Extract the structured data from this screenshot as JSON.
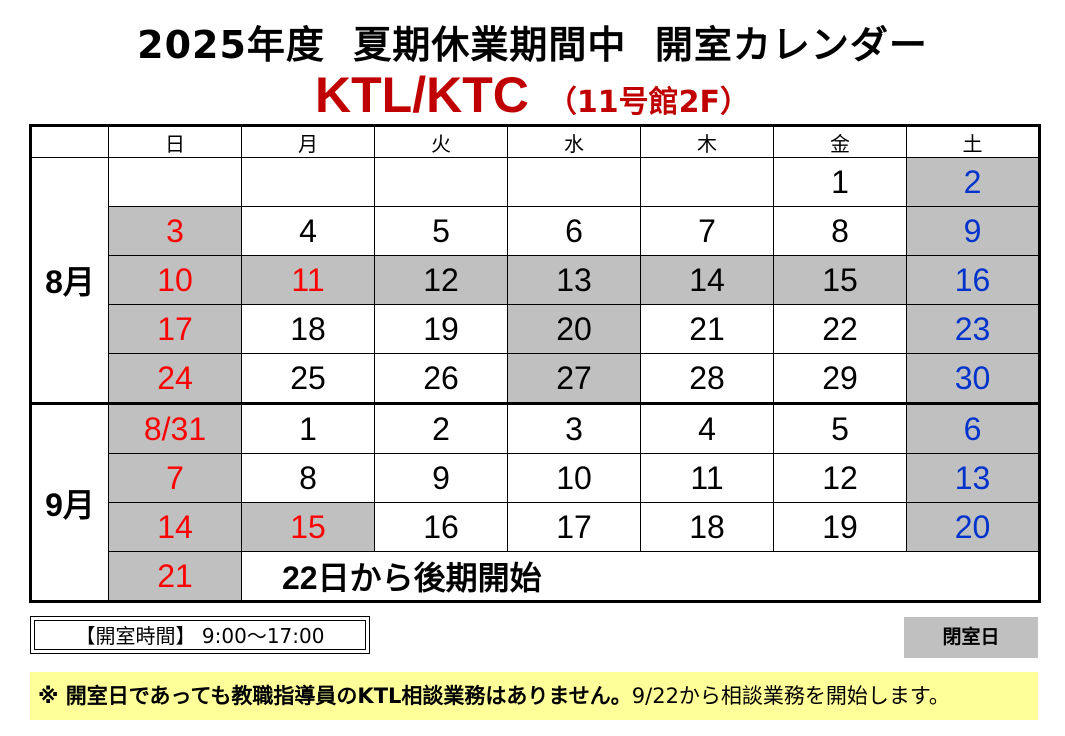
{
  "title": "2025年度  夏期休業期間中  開室カレンダー",
  "subtitle": {
    "main": "KTL/KTC",
    "sub": "（11号館2F）"
  },
  "calendar": {
    "weekdays": [
      "日",
      "月",
      "火",
      "水",
      "木",
      "金",
      "土"
    ],
    "months": [
      {
        "label": "8月",
        "weeks": [
          [
            {
              "d": ""
            },
            {
              "d": ""
            },
            {
              "d": ""
            },
            {
              "d": ""
            },
            {
              "d": ""
            },
            {
              "d": "1"
            },
            {
              "d": "2",
              "closed": true
            }
          ],
          [
            {
              "d": "3",
              "closed": true
            },
            {
              "d": "4"
            },
            {
              "d": "5"
            },
            {
              "d": "6"
            },
            {
              "d": "7"
            },
            {
              "d": "8"
            },
            {
              "d": "9",
              "closed": true
            }
          ],
          [
            {
              "d": "10",
              "closed": true
            },
            {
              "d": "11",
              "closed": true,
              "holiday": true
            },
            {
              "d": "12",
              "closed": true
            },
            {
              "d": "13",
              "closed": true
            },
            {
              "d": "14",
              "closed": true
            },
            {
              "d": "15",
              "closed": true
            },
            {
              "d": "16",
              "closed": true
            }
          ],
          [
            {
              "d": "17",
              "closed": true
            },
            {
              "d": "18"
            },
            {
              "d": "19"
            },
            {
              "d": "20",
              "closed": true
            },
            {
              "d": "21"
            },
            {
              "d": "22"
            },
            {
              "d": "23",
              "closed": true
            }
          ],
          [
            {
              "d": "24",
              "closed": true
            },
            {
              "d": "25"
            },
            {
              "d": "26"
            },
            {
              "d": "27",
              "closed": true
            },
            {
              "d": "28"
            },
            {
              "d": "29"
            },
            {
              "d": "30",
              "closed": true
            }
          ]
        ]
      },
      {
        "label": "9月",
        "weeks": [
          [
            {
              "d": "8/31",
              "closed": true
            },
            {
              "d": "1"
            },
            {
              "d": "2"
            },
            {
              "d": "3"
            },
            {
              "d": "4"
            },
            {
              "d": "5"
            },
            {
              "d": "6",
              "closed": true
            }
          ],
          [
            {
              "d": "7",
              "closed": true
            },
            {
              "d": "8"
            },
            {
              "d": "9"
            },
            {
              "d": "10"
            },
            {
              "d": "11"
            },
            {
              "d": "12"
            },
            {
              "d": "13",
              "closed": true
            }
          ],
          [
            {
              "d": "14",
              "closed": true
            },
            {
              "d": "15",
              "closed": true,
              "holiday": true
            },
            {
              "d": "16"
            },
            {
              "d": "17"
            },
            {
              "d": "18"
            },
            {
              "d": "19"
            },
            {
              "d": "20",
              "closed": true
            }
          ],
          [
            {
              "d": "21",
              "closed": true
            }
          ]
        ]
      }
    ],
    "note": "22日から後期開始"
  },
  "hours_label": "【開室時間】 9:00～17:00",
  "legend_label": "閉室日",
  "notice": {
    "bold": "※ 開室日であっても教職指導員のKTL相談業務はありません。",
    "normal": "9/22から相談業務を開始します。"
  },
  "colors": {
    "sunday": "#ff0000",
    "saturday": "#0033cc",
    "closed_bg": "#c0c0c0",
    "title_red": "#c00000",
    "notice_bg": "#ffff99"
  }
}
